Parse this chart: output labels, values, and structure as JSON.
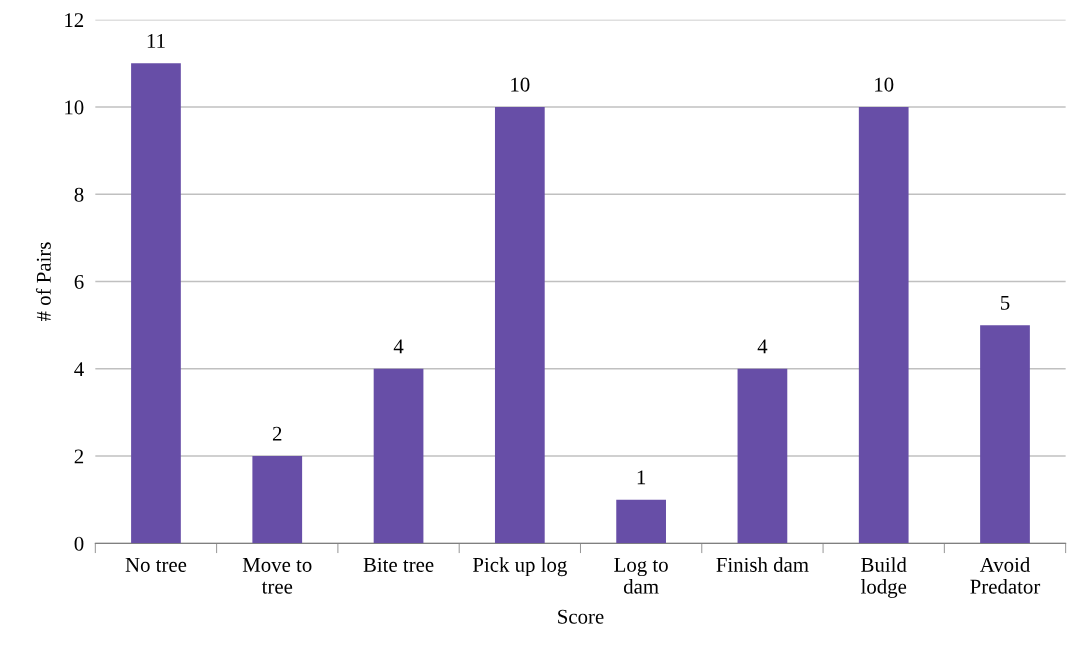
{
  "chart_data": {
    "type": "bar",
    "xlabel": "Score",
    "ylabel": "# of Pairs",
    "categories": [
      "No tree",
      "Move to\ntree",
      "Bite tree",
      "Pick up log",
      "Log to\ndam",
      "Finish dam",
      "Build\nlodge",
      "Avoid\nPredator"
    ],
    "values": [
      11,
      2,
      4,
      10,
      1,
      4,
      10,
      5
    ],
    "color": "#674ea7",
    "ylim": [
      0,
      12
    ],
    "yticks": [
      0,
      2,
      4,
      6,
      8,
      10,
      12
    ],
    "grid": "y",
    "data_labels": true
  }
}
